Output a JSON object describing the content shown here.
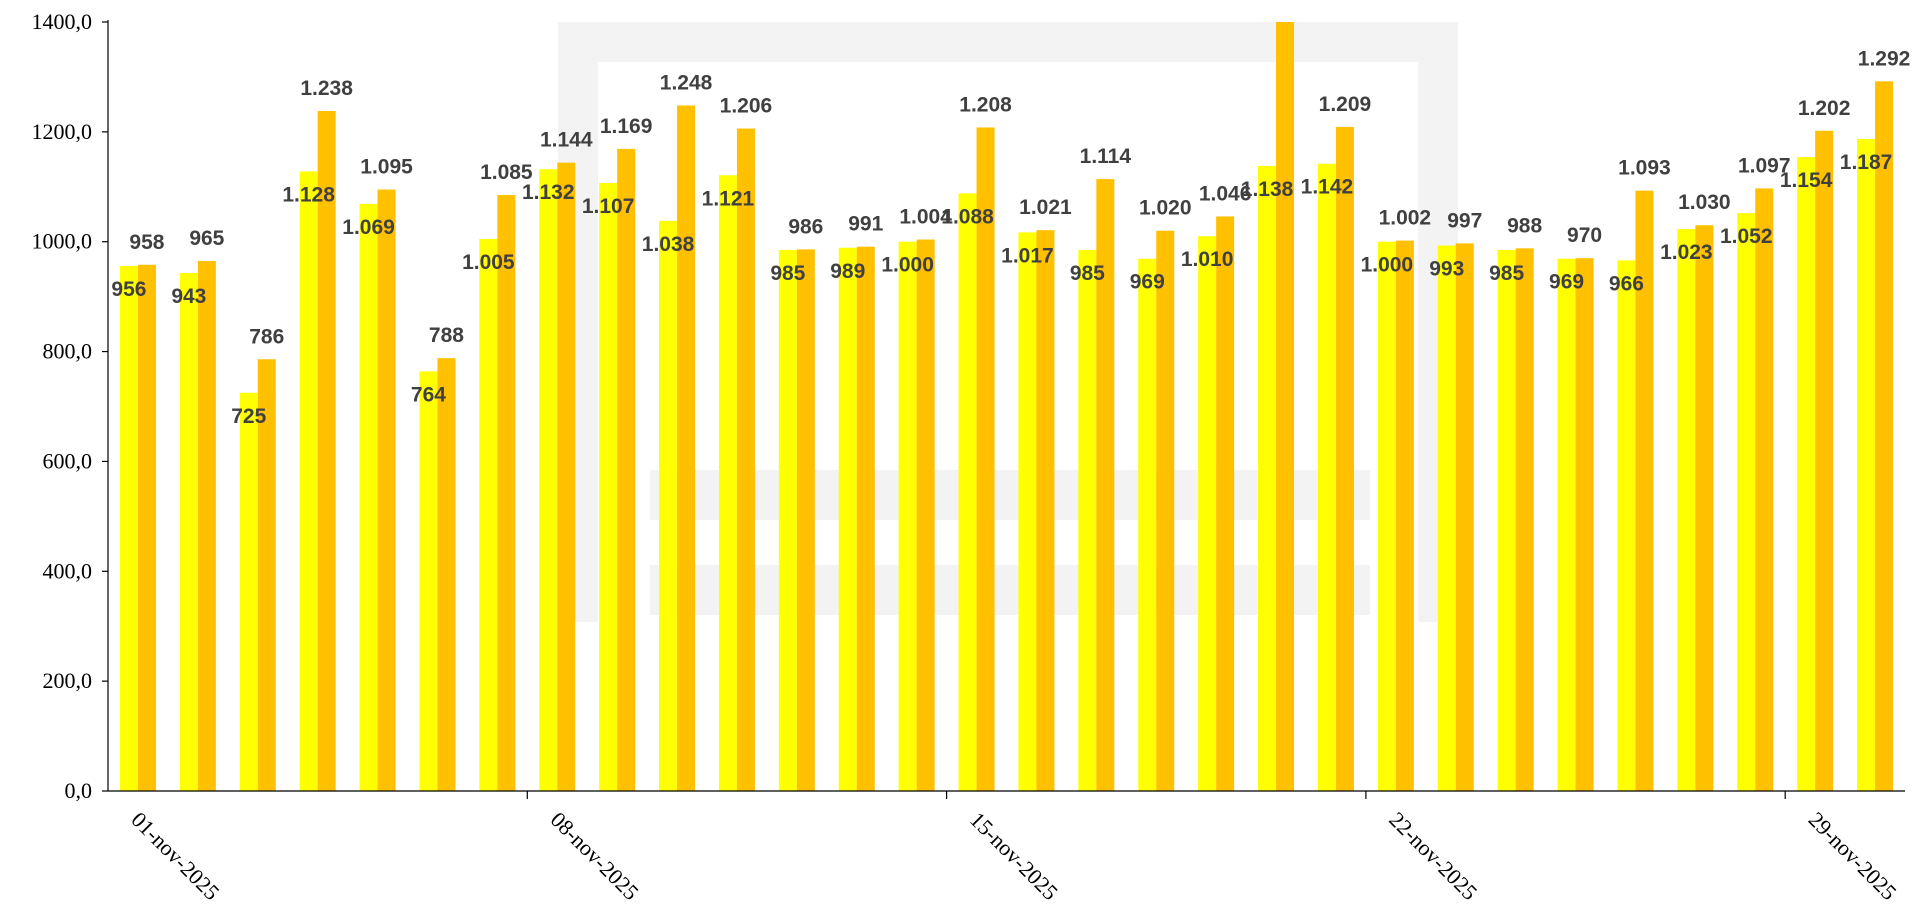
{
  "chart_data": {
    "type": "bar",
    "title": "",
    "xlabel": "",
    "ylabel": "",
    "ylim": [
      0,
      1400
    ],
    "yticks": [
      0,
      200,
      400,
      600,
      800,
      1000,
      1200,
      1400
    ],
    "ytick_labels": [
      "0,0",
      "200,0",
      "400,0",
      "600,0",
      "800,0",
      "1000,0",
      "1200,0",
      "1400,0"
    ],
    "date_labels": [
      {
        "label": "01-nov-2025",
        "index": 0
      },
      {
        "label": "08-nov-2025",
        "index": 7
      },
      {
        "label": "15-nov-2025",
        "index": 14
      },
      {
        "label": "22-nov-2025",
        "index": 21
      },
      {
        "label": "29-nov-2025",
        "index": 28
      }
    ],
    "grid": false,
    "legend": "none",
    "series": [
      {
        "color": "#FFFF00",
        "values": [
          956,
          943,
          725,
          1128,
          1069,
          764,
          1005,
          1132,
          1107,
          1038,
          1121,
          985,
          989,
          1000,
          1088,
          1017,
          985,
          969,
          1010,
          1138,
          1142,
          1000,
          993,
          985,
          969,
          966,
          1023,
          1052,
          1154,
          1187
        ],
        "labels": [
          "956",
          "943",
          "725",
          "1.128",
          "1.069",
          "764",
          "1.005",
          "1.132",
          "1.107",
          "1.038",
          "1.121",
          "985",
          "989",
          "1.000",
          "1.088",
          "1.017",
          "985",
          "969",
          "1.010",
          "1.138",
          "1.142",
          "1.000",
          "993",
          "985",
          "969",
          "966",
          "1.023",
          "1.052",
          "1.154",
          "1.187"
        ]
      },
      {
        "color": "#FFC000",
        "values": [
          958,
          965,
          786,
          1238,
          1095,
          788,
          1085,
          1144,
          1169,
          1248,
          1206,
          986,
          991,
          1004,
          1208,
          1021,
          1114,
          1020,
          1046,
          1400,
          1209,
          1002,
          997,
          988,
          970,
          1093,
          1030,
          1097,
          1202,
          1292
        ],
        "labels": [
          "958",
          "965",
          "786",
          "1.238",
          "1.095",
          "788",
          "1.085",
          "1.144",
          "1.169",
          "1.248",
          "1.206",
          "986",
          "991",
          "1.004",
          "1.208",
          "1.021",
          "1.114",
          "1.020",
          "1.046",
          "",
          "1.209",
          "1.002",
          "997",
          "988",
          "970",
          "1.093",
          "1.030",
          "1.097",
          "1.202",
          "1.292"
        ]
      }
    ]
  }
}
